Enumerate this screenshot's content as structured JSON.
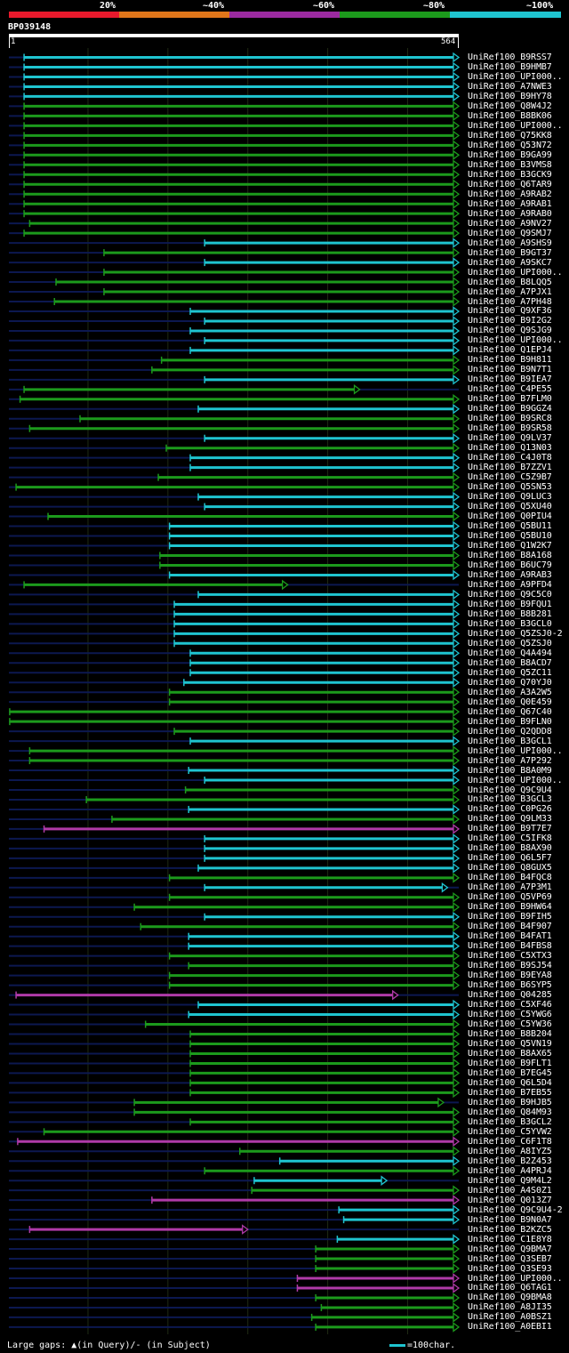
{
  "legend": {
    "labels": [
      "20%",
      "~40%",
      "~60%",
      "~80%",
      "~100%"
    ],
    "colors": [
      "#e8192c",
      "#e0761a",
      "#9b2aa0",
      "#1c9a1c",
      "#1fc4d0"
    ]
  },
  "query": {
    "id": "BP039148",
    "start": "1",
    "end": "564",
    "length": 564
  },
  "colors": {
    "cyan": "#1fc4d0",
    "green": "#1c9a1c",
    "magenta": "#b03aa8",
    "dark": "#0c1850",
    "grid": "#1f2a14"
  },
  "footer": {
    "legend_text": "Large gaps: ▲(in Query)/- (in Subject)",
    "scale_text": "=100char."
  },
  "chart_data": {
    "type": "alignment-overview",
    "query_length": 564,
    "hits": [
      {
        "name": "UniRef100_B9RSS7",
        "start": 20,
        "end": 564,
        "color": "cyan"
      },
      {
        "name": "UniRef100_B9HMB7",
        "start": 20,
        "end": 564,
        "color": "cyan"
      },
      {
        "name": "UniRef100_UPI000..",
        "start": 20,
        "end": 564,
        "color": "cyan"
      },
      {
        "name": "UniRef100_A7NWE3",
        "start": 20,
        "end": 564,
        "color": "cyan"
      },
      {
        "name": "UniRef100_B9HY78",
        "start": 20,
        "end": 564,
        "color": "cyan"
      },
      {
        "name": "UniRef100_Q8W4J2",
        "start": 20,
        "end": 564,
        "color": "green"
      },
      {
        "name": "UniRef100_B8BK06",
        "start": 20,
        "end": 564,
        "color": "green"
      },
      {
        "name": "UniRef100_UPI000..",
        "start": 20,
        "end": 564,
        "color": "green"
      },
      {
        "name": "UniRef100_Q75KK8",
        "start": 20,
        "end": 564,
        "color": "green"
      },
      {
        "name": "UniRef100_Q53N72",
        "start": 20,
        "end": 564,
        "color": "green"
      },
      {
        "name": "UniRef100_B9GA99",
        "start": 20,
        "end": 564,
        "color": "green"
      },
      {
        "name": "UniRef100_B3VMS8",
        "start": 20,
        "end": 564,
        "color": "green"
      },
      {
        "name": "UniRef100_B3GCK9",
        "start": 20,
        "end": 564,
        "color": "green"
      },
      {
        "name": "UniRef100_Q6TAR9",
        "start": 20,
        "end": 564,
        "color": "green"
      },
      {
        "name": "UniRef100_A9RAB2",
        "start": 20,
        "end": 564,
        "color": "green"
      },
      {
        "name": "UniRef100_A9RAB1",
        "start": 20,
        "end": 564,
        "color": "green"
      },
      {
        "name": "UniRef100_A9RAB0",
        "start": 20,
        "end": 564,
        "color": "green"
      },
      {
        "name": "UniRef100_A9NV27",
        "start": 27,
        "end": 564,
        "color": "green"
      },
      {
        "name": "UniRef100_Q9SMJ7",
        "start": 20,
        "end": 564,
        "color": "green"
      },
      {
        "name": "UniRef100_A9SHS9",
        "start": 246,
        "end": 564,
        "color": "cyan"
      },
      {
        "name": "UniRef100_B9GT37",
        "start": 120,
        "end": 564,
        "color": "green"
      },
      {
        "name": "UniRef100_A9SKC7",
        "start": 246,
        "end": 564,
        "color": "cyan"
      },
      {
        "name": "UniRef100_UPI000..",
        "start": 120,
        "end": 564,
        "color": "green"
      },
      {
        "name": "UniRef100_B8LQQ5",
        "start": 60,
        "end": 564,
        "color": "green"
      },
      {
        "name": "UniRef100_A7PJX1",
        "start": 120,
        "end": 564,
        "color": "green"
      },
      {
        "name": "UniRef100_A7PH48",
        "start": 58,
        "end": 564,
        "color": "green"
      },
      {
        "name": "UniRef100_Q9XF36",
        "start": 228,
        "end": 564,
        "color": "cyan"
      },
      {
        "name": "UniRef100_B9I2G2",
        "start": 246,
        "end": 564,
        "color": "cyan"
      },
      {
        "name": "UniRef100_Q9SJG9",
        "start": 228,
        "end": 564,
        "color": "cyan"
      },
      {
        "name": "UniRef100_UPI000..",
        "start": 246,
        "end": 564,
        "color": "cyan"
      },
      {
        "name": "UniRef100_Q1EPJ4",
        "start": 228,
        "end": 564,
        "color": "cyan"
      },
      {
        "name": "UniRef100_B9H811",
        "start": 192,
        "end": 564,
        "color": "green"
      },
      {
        "name": "UniRef100_B9N7T1",
        "start": 180,
        "end": 564,
        "color": "green"
      },
      {
        "name": "UniRef100_B9IEA7",
        "start": 246,
        "end": 564,
        "color": "cyan"
      },
      {
        "name": "UniRef100_C4PE55",
        "start": 20,
        "end": 440,
        "color": "green"
      },
      {
        "name": "UniRef100_B7FLM0",
        "start": 15,
        "end": 564,
        "color": "green"
      },
      {
        "name": "UniRef100_B9GGZ4",
        "start": 238,
        "end": 564,
        "color": "cyan"
      },
      {
        "name": "UniRef100_B9SRC8",
        "start": 90,
        "end": 564,
        "color": "green"
      },
      {
        "name": "UniRef100_B9SR58",
        "start": 27,
        "end": 564,
        "color": "green"
      },
      {
        "name": "UniRef100_Q9LV37",
        "start": 246,
        "end": 564,
        "color": "cyan"
      },
      {
        "name": "UniRef100_Q13N03",
        "start": 198,
        "end": 564,
        "color": "green"
      },
      {
        "name": "UniRef100_C4J0T8",
        "start": 228,
        "end": 564,
        "color": "cyan"
      },
      {
        "name": "UniRef100_B7ZZV1",
        "start": 228,
        "end": 564,
        "color": "cyan"
      },
      {
        "name": "UniRef100_C5Z9B7",
        "start": 188,
        "end": 564,
        "color": "green"
      },
      {
        "name": "UniRef100_Q5SN53",
        "start": 10,
        "end": 564,
        "color": "green"
      },
      {
        "name": "UniRef100_Q9LUC3",
        "start": 238,
        "end": 564,
        "color": "cyan"
      },
      {
        "name": "UniRef100_Q5XU40",
        "start": 246,
        "end": 564,
        "color": "cyan"
      },
      {
        "name": "UniRef100_Q0PIU4",
        "start": 50,
        "end": 564,
        "color": "green"
      },
      {
        "name": "UniRef100_Q5BU11",
        "start": 202,
        "end": 564,
        "color": "cyan"
      },
      {
        "name": "UniRef100_Q5BU10",
        "start": 202,
        "end": 564,
        "color": "cyan"
      },
      {
        "name": "UniRef100_Q1W2K7",
        "start": 202,
        "end": 564,
        "color": "cyan"
      },
      {
        "name": "UniRef100_B8A168",
        "start": 190,
        "end": 564,
        "color": "green"
      },
      {
        "name": "UniRef100_B6UC79",
        "start": 190,
        "end": 564,
        "color": "green"
      },
      {
        "name": "UniRef100_A9RAB3",
        "start": 202,
        "end": 564,
        "color": "cyan"
      },
      {
        "name": "UniRef100_A9PFD4",
        "start": 20,
        "end": 350,
        "color": "green"
      },
      {
        "name": "UniRef100_Q9C5C0",
        "start": 238,
        "end": 564,
        "color": "cyan"
      },
      {
        "name": "UniRef100_B9FQU1",
        "start": 208,
        "end": 564,
        "color": "cyan"
      },
      {
        "name": "UniRef100_B8B281",
        "start": 208,
        "end": 564,
        "color": "cyan"
      },
      {
        "name": "UniRef100_B3GCL0",
        "start": 208,
        "end": 564,
        "color": "cyan"
      },
      {
        "name": "UniRef100_Q5ZSJ0-2",
        "start": 208,
        "end": 564,
        "color": "cyan"
      },
      {
        "name": "UniRef100_Q5ZSJ0",
        "start": 208,
        "end": 564,
        "color": "cyan"
      },
      {
        "name": "UniRef100_Q4A494",
        "start": 228,
        "end": 564,
        "color": "cyan"
      },
      {
        "name": "UniRef100_B8ACD7",
        "start": 228,
        "end": 564,
        "color": "cyan"
      },
      {
        "name": "UniRef100_Q5ZC11",
        "start": 228,
        "end": 564,
        "color": "cyan"
      },
      {
        "name": "UniRef100_Q70YJ0",
        "start": 220,
        "end": 564,
        "color": "cyan"
      },
      {
        "name": "UniRef100_A3A2W5",
        "start": 202,
        "end": 564,
        "color": "green"
      },
      {
        "name": "UniRef100_Q0E459",
        "start": 202,
        "end": 564,
        "color": "green"
      },
      {
        "name": "UniRef100_Q67C40",
        "start": 2,
        "end": 564,
        "color": "green"
      },
      {
        "name": "UniRef100_B9FLN0",
        "start": 2,
        "end": 564,
        "color": "green"
      },
      {
        "name": "UniRef100_Q2QDD8",
        "start": 208,
        "end": 564,
        "color": "green"
      },
      {
        "name": "UniRef100_B3GCL1",
        "start": 228,
        "end": 564,
        "color": "cyan"
      },
      {
        "name": "UniRef100_UPI000..",
        "start": 27,
        "end": 564,
        "color": "green"
      },
      {
        "name": "UniRef100_A7P292",
        "start": 27,
        "end": 564,
        "color": "green"
      },
      {
        "name": "UniRef100_B8A0M9",
        "start": 226,
        "end": 564,
        "color": "cyan"
      },
      {
        "name": "UniRef100_UPI000..",
        "start": 246,
        "end": 564,
        "color": "cyan"
      },
      {
        "name": "UniRef100_Q9C9U4",
        "start": 222,
        "end": 564,
        "color": "green"
      },
      {
        "name": "UniRef100_B3GCL3",
        "start": 98,
        "end": 564,
        "color": "green"
      },
      {
        "name": "UniRef100_C0PG26",
        "start": 226,
        "end": 564,
        "color": "cyan"
      },
      {
        "name": "UniRef100_Q9LM33",
        "start": 130,
        "end": 564,
        "color": "green"
      },
      {
        "name": "UniRef100_B9T7E7",
        "start": 45,
        "end": 564,
        "color": "magenta"
      },
      {
        "name": "UniRef100_C5IFK8",
        "start": 246,
        "end": 564,
        "color": "cyan"
      },
      {
        "name": "UniRef100_B8AX90",
        "start": 246,
        "end": 564,
        "color": "cyan"
      },
      {
        "name": "UniRef100_Q6L5F7",
        "start": 246,
        "end": 564,
        "color": "cyan"
      },
      {
        "name": "UniRef100_Q8GUX5",
        "start": 238,
        "end": 564,
        "color": "cyan"
      },
      {
        "name": "UniRef100_B4FQC8",
        "start": 202,
        "end": 564,
        "color": "green"
      },
      {
        "name": "UniRef100_A7P3M1",
        "start": 246,
        "end": 550,
        "color": "cyan"
      },
      {
        "name": "UniRef100_Q5VP69",
        "start": 202,
        "end": 564,
        "color": "green"
      },
      {
        "name": "UniRef100_B9HW64",
        "start": 158,
        "end": 564,
        "color": "green"
      },
      {
        "name": "UniRef100_B9FIH5",
        "start": 246,
        "end": 564,
        "color": "cyan"
      },
      {
        "name": "UniRef100_B4F907",
        "start": 166,
        "end": 564,
        "color": "green"
      },
      {
        "name": "UniRef100_B4FAT1",
        "start": 226,
        "end": 564,
        "color": "cyan"
      },
      {
        "name": "UniRef100_B4FBS8",
        "start": 226,
        "end": 564,
        "color": "cyan"
      },
      {
        "name": "UniRef100_C5XTX3",
        "start": 202,
        "end": 564,
        "color": "green"
      },
      {
        "name": "UniRef100_B9SJ54",
        "start": 226,
        "end": 564,
        "color": "green"
      },
      {
        "name": "UniRef100_B9EYA8",
        "start": 202,
        "end": 564,
        "color": "green"
      },
      {
        "name": "UniRef100_B6SYP5",
        "start": 202,
        "end": 564,
        "color": "green"
      },
      {
        "name": "UniRef100_Q04285",
        "start": 10,
        "end": 488,
        "color": "magenta"
      },
      {
        "name": "UniRef100_C5XF46",
        "start": 238,
        "end": 564,
        "color": "cyan"
      },
      {
        "name": "UniRef100_C5YWG6",
        "start": 226,
        "end": 564,
        "color": "cyan"
      },
      {
        "name": "UniRef100_C5YW36",
        "start": 172,
        "end": 564,
        "color": "green"
      },
      {
        "name": "UniRef100_B8B204",
        "start": 228,
        "end": 564,
        "color": "green"
      },
      {
        "name": "UniRef100_Q5VN19",
        "start": 228,
        "end": 564,
        "color": "green"
      },
      {
        "name": "UniRef100_B8AX65",
        "start": 228,
        "end": 564,
        "color": "green"
      },
      {
        "name": "UniRef100_B9FLT1",
        "start": 228,
        "end": 564,
        "color": "green"
      },
      {
        "name": "UniRef100_B7EG45",
        "start": 228,
        "end": 564,
        "color": "green"
      },
      {
        "name": "UniRef100_Q6L5D4",
        "start": 228,
        "end": 564,
        "color": "green"
      },
      {
        "name": "UniRef100_B7EB55",
        "start": 228,
        "end": 564,
        "color": "green"
      },
      {
        "name": "UniRef100_B9HJB5",
        "start": 158,
        "end": 545,
        "color": "green"
      },
      {
        "name": "UniRef100_Q84M93",
        "start": 158,
        "end": 564,
        "color": "green"
      },
      {
        "name": "UniRef100_B3GCL2",
        "start": 228,
        "end": 564,
        "color": "green"
      },
      {
        "name": "UniRef100_C5YVW2",
        "start": 45,
        "end": 564,
        "color": "green"
      },
      {
        "name": "UniRef100_C6F1T8",
        "start": 12,
        "end": 564,
        "color": "magenta"
      },
      {
        "name": "UniRef100_A8IYZ5",
        "start": 290,
        "end": 564,
        "color": "green"
      },
      {
        "name": "UniRef100_B2Z453",
        "start": 340,
        "end": 564,
        "color": "cyan"
      },
      {
        "name": "UniRef100_A4PRJ4",
        "start": 246,
        "end": 564,
        "color": "green"
      },
      {
        "name": "UniRef100_Q9M4L2",
        "start": 308,
        "end": 474,
        "color": "cyan"
      },
      {
        "name": "UniRef100_A4S0Z1",
        "start": 305,
        "end": 564,
        "color": "green"
      },
      {
        "name": "UniRef100_Q013Z7",
        "start": 180,
        "end": 564,
        "color": "magenta"
      },
      {
        "name": "UniRef100_Q9C9U4-2",
        "start": 414,
        "end": 564,
        "color": "cyan"
      },
      {
        "name": "UniRef100_B9N0A7",
        "start": 420,
        "end": 564,
        "color": "cyan"
      },
      {
        "name": "UniRef100_B2KZC5",
        "start": 27,
        "end": 300,
        "color": "magenta"
      },
      {
        "name": "UniRef100_C1E8Y8",
        "start": 412,
        "end": 564,
        "color": "cyan"
      },
      {
        "name": "UniRef100_Q9BMA7",
        "start": 385,
        "end": 564,
        "color": "green"
      },
      {
        "name": "UniRef100_Q3SEB7",
        "start": 385,
        "end": 564,
        "color": "green"
      },
      {
        "name": "UniRef100_Q3SE93",
        "start": 385,
        "end": 564,
        "color": "green"
      },
      {
        "name": "UniRef100_UPI000..",
        "start": 362,
        "end": 564,
        "color": "magenta"
      },
      {
        "name": "UniRef100_Q6TAG1",
        "start": 362,
        "end": 564,
        "color": "magenta"
      },
      {
        "name": "UniRef100_Q9BMA8",
        "start": 385,
        "end": 564,
        "color": "green"
      },
      {
        "name": "UniRef100_A8JI35",
        "start": 392,
        "end": 564,
        "color": "green"
      },
      {
        "name": "UniRef100_A0BSZ1",
        "start": 380,
        "end": 564,
        "color": "green"
      },
      {
        "name": "UniRef100_A0EBI1",
        "start": 385,
        "end": 564,
        "color": "green"
      }
    ]
  }
}
